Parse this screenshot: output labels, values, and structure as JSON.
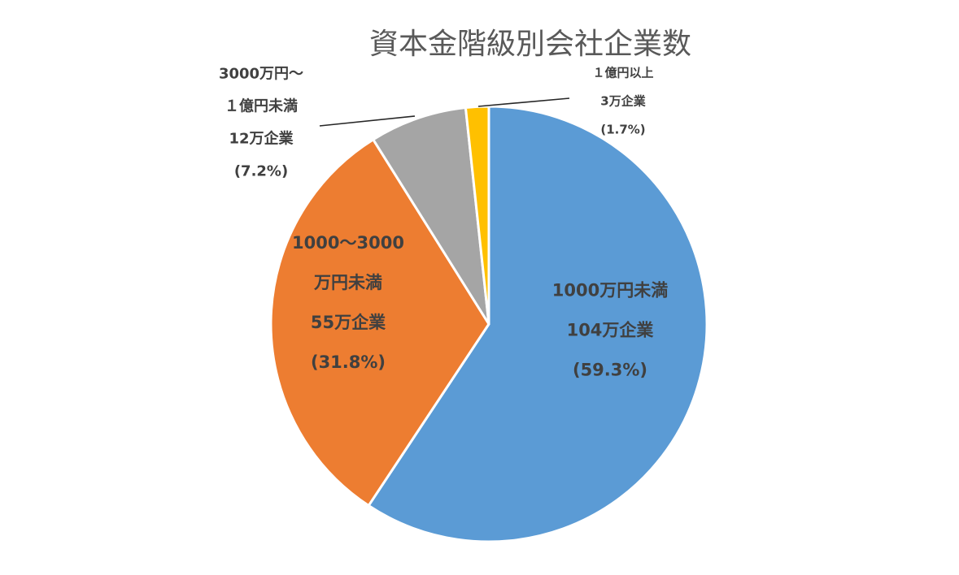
{
  "chart_data": {
    "type": "pie",
    "title": "資本金階級別会社企業数",
    "slices": [
      {
        "id": "lt-10m",
        "label_lines": [
          "1000万円未満",
          "104万企業",
          "(59.3%)"
        ],
        "value": 59.3,
        "companies": "104万企業",
        "percent_text": "(59.3%)",
        "color": "#5B9BD5"
      },
      {
        "id": "10m-30m",
        "label_lines": [
          "1000～3000",
          "万円未満",
          "55万企業",
          "(31.8%)"
        ],
        "value": 31.8,
        "companies": "55万企業",
        "percent_text": "(31.8%)",
        "color": "#ED7D31"
      },
      {
        "id": "30m-100m",
        "label_lines": [
          "3000万円～",
          "１億円未満",
          "12万企業",
          "(7.2%)"
        ],
        "value": 7.2,
        "companies": "12万企業",
        "percent_text": "(7.2%)",
        "color": "#A5A5A5"
      },
      {
        "id": "gte-100m",
        "label_lines": [
          "１億円以上",
          "3万企業",
          "(1.7%)"
        ],
        "value": 1.7,
        "companies": "3万企業",
        "percent_text": "(1.7%)",
        "color": "#FFC000"
      }
    ],
    "start_angle": "12 o'clock",
    "direction": "clockwise",
    "legend": "none",
    "label_style": "data labels; outer labels with leader lines for small slices",
    "label_color": "#404040",
    "slice_border_color": "#ffffff"
  }
}
